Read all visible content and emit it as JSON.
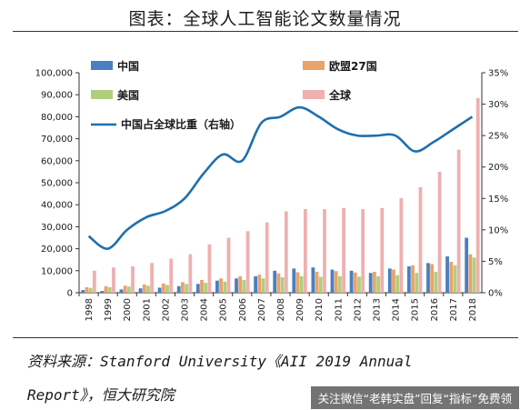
{
  "header": {
    "title": "图表：全球人工智能论文数量情况"
  },
  "source": {
    "line1": "资料来源：Stanford University《AII 2019 Annual",
    "line2": "Report》，恒大研究院"
  },
  "watermark": {
    "text": "关注微信“老韩实盘”回复“指标”免费领"
  },
  "colors": {
    "china": "#4a7fc1",
    "eu27": "#e9a36a",
    "us": "#b0cf7e",
    "world": "#eeb0b0",
    "share_line": "#1f6fad"
  },
  "chart_data": {
    "type": "bar",
    "title": "",
    "categories": [
      "1998",
      "1999",
      "2000",
      "2001",
      "2002",
      "2003",
      "2004",
      "2005",
      "2006",
      "2007",
      "2008",
      "2009",
      "2010",
      "2011",
      "2012",
      "2013",
      "2014",
      "2015",
      "2016",
      "2017",
      "2018"
    ],
    "left_axis": {
      "ylim": [
        0,
        100000
      ],
      "ticks": [
        "0",
        "10,000",
        "20,000",
        "30,000",
        "40,000",
        "50,000",
        "60,000",
        "70,000",
        "80,000",
        "90,000",
        "100,000"
      ]
    },
    "right_axis": {
      "ylim": [
        0,
        35
      ],
      "ticks": [
        "0%",
        "5%",
        "10%",
        "15%",
        "20%",
        "25%",
        "30%",
        "35%"
      ]
    },
    "series": [
      {
        "name": "中国",
        "key": "china",
        "axis": "left",
        "values": [
          1200,
          800,
          1500,
          2000,
          2300,
          3000,
          4000,
          5500,
          6500,
          7500,
          10000,
          11000,
          11500,
          10500,
          10000,
          9000,
          11000,
          12000,
          13500,
          16500,
          25000
        ]
      },
      {
        "name": "欧盟27国",
        "key": "eu27",
        "axis": "left",
        "values": [
          2500,
          3000,
          3200,
          3800,
          4200,
          4800,
          5800,
          6500,
          7500,
          8200,
          8800,
          9300,
          9500,
          9800,
          9200,
          9500,
          10500,
          12500,
          13000,
          14000,
          17500
        ]
      },
      {
        "name": "美国",
        "key": "us",
        "axis": "left",
        "values": [
          2200,
          2500,
          2800,
          3200,
          3500,
          4000,
          4500,
          5000,
          5800,
          6500,
          7000,
          7500,
          7200,
          7500,
          7300,
          7500,
          8000,
          9000,
          9500,
          12500,
          16000
        ]
      },
      {
        "name": "全球",
        "key": "world",
        "axis": "left",
        "values": [
          10000,
          11500,
          12000,
          13500,
          15500,
          17500,
          22000,
          25000,
          28000,
          32000,
          37000,
          38000,
          38000,
          38500,
          38000,
          38500,
          43000,
          48000,
          55000,
          65000,
          88500
        ]
      },
      {
        "name": "中国占全球比重（右轴）",
        "key": "share",
        "type": "line",
        "axis": "right",
        "values": [
          9,
          7,
          10,
          12,
          13,
          15,
          19,
          22,
          21,
          27,
          28,
          29.5,
          28,
          26,
          25,
          25,
          25,
          22.5,
          24,
          26,
          28
        ]
      }
    ]
  }
}
